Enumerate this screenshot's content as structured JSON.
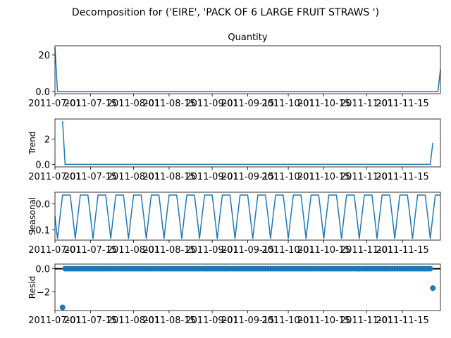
{
  "suptitle": "Decomposition for ('EIRE', 'PACK OF 6 LARGE FRUIT STRAWS ')",
  "chart_data": [
    {
      "type": "line",
      "title": "Quantity",
      "ylabel": "",
      "x_start": "2011-07-01",
      "x_end": "2011-11-30",
      "ylim": [
        -1.2,
        25
      ],
      "yticks": [
        0,
        20
      ],
      "xtick_labels": [
        "2011-07-01",
        "2011-07-15",
        "2011-08-01",
        "2011-08-15",
        "2011-09-01",
        "2011-09-15",
        "2011-10-01",
        "2011-10-15",
        "2011-11-01",
        "2011-11-15"
      ],
      "points": [
        [
          "2011-07-01",
          24
        ],
        [
          "2011-07-02",
          0
        ],
        [
          "2011-11-29",
          0
        ],
        [
          "2011-11-30",
          12
        ]
      ]
    },
    {
      "type": "line",
      "title": "",
      "ylabel": "Trend",
      "x_start": "2011-07-01",
      "x_end": "2011-11-30",
      "ylim": [
        -0.2,
        3.6
      ],
      "yticks": [
        0,
        2
      ],
      "xtick_labels": [
        "2011-07-01",
        "2011-07-15",
        "2011-08-01",
        "2011-08-15",
        "2011-09-01",
        "2011-09-15",
        "2011-10-01",
        "2011-10-15",
        "2011-11-01",
        "2011-11-15"
      ],
      "points": [
        [
          "2011-07-04",
          3.43
        ],
        [
          "2011-07-05",
          0
        ],
        [
          "2011-11-26",
          0
        ],
        [
          "2011-11-27",
          1.71
        ]
      ]
    },
    {
      "type": "line",
      "title": "",
      "ylabel": "Seasonal",
      "x_start": "2011-07-01",
      "x_end": "2011-11-30",
      "ylim": [
        -0.14,
        0.045
      ],
      "yticks": [
        -0.1,
        0.0
      ],
      "xtick_labels": [
        "2011-07-01",
        "2011-07-15",
        "2011-08-01",
        "2011-08-15",
        "2011-09-01",
        "2011-09-15",
        "2011-10-01",
        "2011-10-15",
        "2011-11-01",
        "2011-11-15"
      ],
      "period": 7,
      "start_phase": 2,
      "seasonal_pattern": [
        0.034,
        0.034,
        -0.048,
        -0.134,
        -0.048,
        0.034,
        0.034
      ]
    },
    {
      "type": "scatter",
      "title": "",
      "ylabel": "Resid",
      "x_start": "2011-07-01",
      "x_end": "2011-11-30",
      "ylim": [
        -3.6,
        0.4
      ],
      "yticks": [
        -2,
        0
      ],
      "xtick_labels": [
        "2011-07-01",
        "2011-07-15",
        "2011-08-01",
        "2011-08-15",
        "2011-09-01",
        "2011-09-15",
        "2011-10-01",
        "2011-10-15",
        "2011-11-01",
        "2011-11-15"
      ],
      "baseline_range": [
        "2011-07-05",
        "2011-11-26"
      ],
      "baseline_value": 0,
      "outliers": [
        [
          "2011-07-04",
          -3.33
        ],
        [
          "2011-11-27",
          -1.67
        ]
      ]
    }
  ]
}
